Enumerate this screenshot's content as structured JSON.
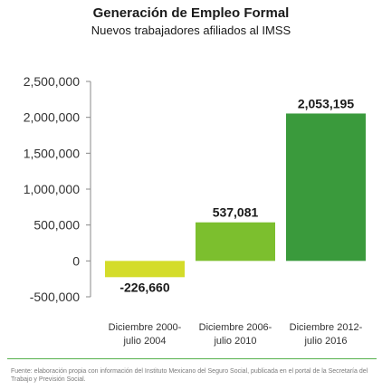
{
  "chart_data": {
    "type": "bar",
    "title": "Generación de Empleo Formal",
    "subtitle": "Nuevos trabajadores afiliados al IMSS",
    "categories": [
      [
        "Diciembre 2000-",
        "julio 2004"
      ],
      [
        "Diciembre 2006-",
        "julio 2010"
      ],
      [
        "Diciembre 2012-",
        "julio 2016"
      ]
    ],
    "values": [
      -226660,
      537081,
      2053195
    ],
    "value_labels": [
      "-226,660",
      "537,081",
      "2,053,195"
    ],
    "bar_colors": [
      "#d4dc2a",
      "#7cbf2e",
      "#3a9a3c"
    ],
    "ylim": [
      -500000,
      2500000
    ],
    "yticks": [
      2500000,
      2000000,
      1500000,
      1000000,
      500000,
      0,
      -500000
    ],
    "ytick_labels": [
      "2,500,000",
      "2,000,000",
      "1,500,000",
      "1,000,000",
      "500,000",
      "0",
      "-500,000"
    ],
    "grid": false,
    "xlabel": "",
    "ylabel": ""
  },
  "footnote": "Fuente: elaboración propia con información del Instituto Mexicano del Seguro Social, publicada en el portal de la Secretaría del Trabajo y Previsión Social.",
  "colors": {
    "axis": "#888888",
    "text": "#1a1a1a",
    "rule": "#56b04c"
  }
}
